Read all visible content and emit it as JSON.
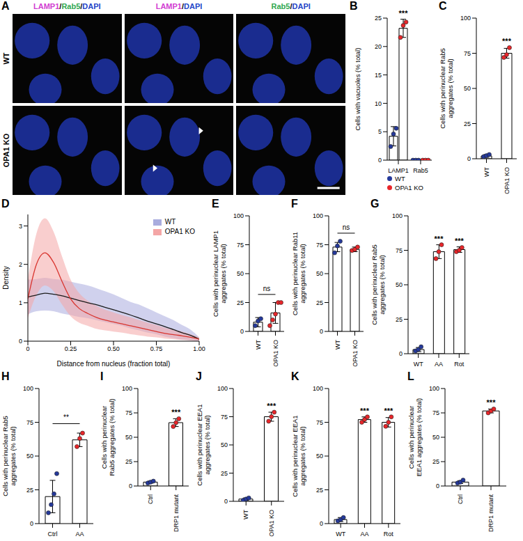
{
  "image_panel": {
    "panel_label": "A",
    "columns": [
      [
        "LAMP1",
        "/",
        "Rab5",
        "/",
        "DAPI"
      ],
      [
        "LAMP1",
        "/",
        "DAPI"
      ],
      [
        "Rab5",
        "/",
        "DAPI"
      ]
    ],
    "rows": [
      "WT",
      "OPA1 KO"
    ],
    "channel_colors": {
      "LAMP1": "#d23ed2",
      "Rab5": "#2fa84f",
      "DAPI": "#2346c8"
    }
  },
  "chart_data": [
    {
      "panel_label": "B",
      "type": "bar",
      "ylabel": "Cells with vacuoles (% total)",
      "categories": [
        "LAMP1",
        "Rab5"
      ],
      "ylim": [
        0,
        25
      ],
      "yticks": [
        0,
        5,
        10,
        15,
        20,
        25
      ],
      "legend": "bottom",
      "series": [
        {
          "name": "WT",
          "color": "#25399b",
          "values": [
            4.2,
            0
          ],
          "errors": [
            1.7,
            0
          ],
          "points": [
            [
              2.4,
              4.6,
              5.6
            ],
            [
              0,
              0,
              0
            ]
          ]
        },
        {
          "name": "OPA1 KO",
          "color": "#e8262a",
          "values": [
            23.2,
            0
          ],
          "errors": [
            1.6,
            0
          ],
          "points": [
            [
              21.6,
              23.7,
              24.3
            ],
            [
              0,
              0,
              0
            ]
          ],
          "significance": [
            "***",
            null
          ]
        }
      ]
    },
    {
      "panel_label": "C",
      "type": "bar",
      "ylabel": "Cells with perinuclear Rab5 aggregates (% total)",
      "categories": [
        "WT",
        "OPA1 KO"
      ],
      "values": [
        2,
        75
      ],
      "errors": [
        1,
        3.5
      ],
      "points": [
        [
          1.5,
          2.2,
          3
        ],
        [
          72,
          74,
          79
        ]
      ],
      "colors": [
        "#25399b",
        "#e8262a"
      ],
      "significance": [
        null,
        "***"
      ],
      "ylim": [
        0,
        100
      ],
      "yticks": [
        0,
        25,
        50,
        75,
        100
      ]
    },
    {
      "panel_label": "D",
      "type": "line",
      "xlabel": "Distance from nucleus (fraction total)",
      "ylabel": "Density",
      "x": [
        0,
        0.05,
        0.1,
        0.15,
        0.2,
        0.25,
        0.3,
        0.35,
        0.4,
        0.45,
        0.5,
        0.55,
        0.6,
        0.65,
        0.7,
        0.75,
        0.8,
        0.85,
        0.9,
        0.95,
        1
      ],
      "xlim": [
        0,
        1
      ],
      "xticks": [
        0,
        0.25,
        {
          "value": 0.5,
          "label": "0.50"
        },
        0.75,
        {
          "value": 1,
          "label": "1.00"
        }
      ],
      "ylim": [
        0,
        3.3
      ],
      "yticks": [
        0,
        1,
        2,
        3
      ],
      "legend": "upper right",
      "series": [
        {
          "name": "WT",
          "color": "#a9acde",
          "values": [
            1.15,
            1.2,
            1.25,
            1.22,
            1.18,
            1.12,
            1.06,
            1.0,
            0.95,
            0.88,
            0.82,
            0.75,
            0.68,
            0.6,
            0.52,
            0.45,
            0.38,
            0.3,
            0.22,
            0.15,
            0.05
          ],
          "lower": [
            0.7,
            0.78,
            0.8,
            0.78,
            0.72,
            0.68,
            0.63,
            0.6,
            0.55,
            0.5,
            0.45,
            0.4,
            0.33,
            0.28,
            0.22,
            0.18,
            0.12,
            0.08,
            0.04,
            0.02,
            0
          ],
          "upper": [
            1.6,
            1.62,
            1.65,
            1.62,
            1.6,
            1.55,
            1.5,
            1.45,
            1.38,
            1.3,
            1.22,
            1.12,
            1.02,
            0.95,
            0.85,
            0.75,
            0.65,
            0.55,
            0.42,
            0.3,
            0.1
          ]
        },
        {
          "name": "OPA1 KO",
          "color": "#f4a6a6",
          "values": [
            1.1,
            2.0,
            2.3,
            2.05,
            1.55,
            1.1,
            0.85,
            0.72,
            0.62,
            0.55,
            0.5,
            0.45,
            0.4,
            0.35,
            0.3,
            0.25,
            0.2,
            0.17,
            0.14,
            0.1,
            0.05
          ],
          "lower": [
            0.6,
            1.2,
            1.45,
            1.3,
            0.95,
            0.65,
            0.48,
            0.4,
            0.32,
            0.28,
            0.25,
            0.22,
            0.18,
            0.15,
            0.12,
            0.1,
            0.07,
            0.05,
            0.03,
            0.02,
            0
          ],
          "upper": [
            1.6,
            2.8,
            3.2,
            2.85,
            2.2,
            1.6,
            1.25,
            1.05,
            0.92,
            0.82,
            0.75,
            0.68,
            0.62,
            0.55,
            0.48,
            0.42,
            0.35,
            0.3,
            0.25,
            0.18,
            0.1
          ]
        }
      ]
    },
    {
      "panel_label": "E",
      "type": "bar",
      "ylabel": "Cells with perinuclear LAMP1 aggregates (% total)",
      "categories": [
        "WT",
        "OPA1 KO"
      ],
      "values": [
        8,
        16
      ],
      "errors": [
        4,
        9
      ],
      "points": [
        [
          5,
          9,
          11
        ],
        [
          5,
          10,
          15,
          25,
          25
        ]
      ],
      "colors": [
        "#25399b",
        "#e8262a"
      ],
      "comparisons": [
        {
          "categories": [
            "WT",
            "OPA1 KO"
          ],
          "label": "ns"
        }
      ],
      "ylim": [
        0,
        100
      ],
      "yticks": [
        0,
        25,
        50,
        75,
        100
      ]
    },
    {
      "panel_label": "F",
      "type": "bar",
      "ylabel": "Cells with perinuclear Rab11 aggregates (% total)",
      "categories": [
        "WT",
        "OPA1 KO"
      ],
      "values": [
        73,
        71
      ],
      "errors": [
        4,
        2
      ],
      "points": [
        [
          68,
          74,
          78
        ],
        [
          70,
          71,
          73
        ]
      ],
      "colors": [
        "#25399b",
        "#e8262a"
      ],
      "comparisons": [
        {
          "categories": [
            "WT",
            "OPA1 KO"
          ],
          "label": "ns"
        }
      ],
      "ylim": [
        0,
        100
      ],
      "yticks": [
        0,
        25,
        50,
        75,
        100
      ]
    },
    {
      "panel_label": "G",
      "type": "bar",
      "ylabel": "Cells with perinuclear Rab5 aggregates (% total)",
      "categories": [
        "WT",
        "AA",
        "Rot"
      ],
      "values": [
        3,
        74,
        75.5
      ],
      "errors": [
        1.5,
        5,
        2
      ],
      "points": [
        [
          2,
          3,
          5
        ],
        [
          69,
          74,
          79
        ],
        [
          74,
          75,
          77
        ]
      ],
      "colors": [
        "#25399b",
        "#e8262a",
        "#e8262a"
      ],
      "significance": [
        null,
        "***",
        "***"
      ],
      "ylim": [
        0,
        100
      ],
      "yticks": [
        0,
        25,
        50,
        75,
        100
      ]
    },
    {
      "panel_label": "H",
      "type": "bar",
      "ylabel": "Cells with perinuclear Rab5 aggregates (% total)",
      "categories": [
        "Ctrl",
        "AA"
      ],
      "values": [
        20,
        62
      ],
      "errors": [
        12,
        5
      ],
      "points": [
        [
          8,
          14,
          22,
          37
        ],
        [
          57,
          63,
          67
        ]
      ],
      "colors": [
        "#25399b",
        "#e8262a"
      ],
      "comparisons": [
        {
          "categories": [
            "Ctrl",
            "AA"
          ],
          "label": "**"
        }
      ],
      "ylim": [
        0,
        100
      ],
      "yticks": [
        0,
        25,
        50,
        75,
        100
      ]
    },
    {
      "panel_label": "I",
      "type": "bar",
      "ylabel": "Cells with perinuclear Rab5 aggregates (% total)",
      "categories": [
        "Ctrl",
        "DRP1 mutant"
      ],
      "values": [
        4,
        65
      ],
      "errors": [
        1,
        4
      ],
      "points": [
        [
          3,
          4,
          5
        ],
        [
          61,
          65,
          69
        ]
      ],
      "colors": [
        "#25399b",
        "#e8262a"
      ],
      "significance": [
        null,
        "***"
      ],
      "ylim": [
        0,
        100
      ],
      "yticks": [
        0,
        25,
        50,
        75,
        100
      ]
    },
    {
      "panel_label": "J",
      "type": "bar",
      "ylabel": "Cells with perinuclear EEA1 aggregates (% total)",
      "categories": [
        "WT",
        "OPA1 KO"
      ],
      "values": [
        2,
        75
      ],
      "errors": [
        1,
        4
      ],
      "points": [
        [
          1,
          2,
          3
        ],
        [
          71,
          75,
          79
        ]
      ],
      "colors": [
        "#25399b",
        "#e8262a"
      ],
      "significance": [
        null,
        "***"
      ],
      "ylim": [
        0,
        100
      ],
      "yticks": [
        0,
        25,
        50,
        75,
        100
      ]
    },
    {
      "panel_label": "K",
      "type": "bar",
      "ylabel": "Cells with perinuclear EEA1 aggregates (% total)",
      "categories": [
        "WT",
        "AA",
        "Rot"
      ],
      "values": [
        3,
        77,
        75
      ],
      "errors": [
        1.5,
        2,
        3.5
      ],
      "points": [
        [
          2,
          3,
          4.5
        ],
        [
          75,
          77,
          79
        ],
        [
          72,
          75,
          79
        ]
      ],
      "colors": [
        "#25399b",
        "#e8262a",
        "#e8262a"
      ],
      "significance": [
        null,
        "***",
        "***"
      ],
      "ylim": [
        0,
        100
      ],
      "yticks": [
        0,
        25,
        50,
        75,
        100
      ]
    },
    {
      "panel_label": "L",
      "type": "bar",
      "ylabel": "Cells with perinuclear EEA1 aggregates (% total)",
      "categories": [
        "Ctrl",
        "DRP1 mutant"
      ],
      "values": [
        4,
        77
      ],
      "errors": [
        1.5,
        2
      ],
      "points": [
        [
          3,
          4,
          6
        ],
        [
          75,
          77,
          79
        ]
      ],
      "colors": [
        "#25399b",
        "#e8262a"
      ],
      "significance": [
        null,
        "***"
      ],
      "ylim": [
        0,
        100
      ],
      "yticks": [
        0,
        25,
        50,
        75,
        100
      ]
    }
  ]
}
